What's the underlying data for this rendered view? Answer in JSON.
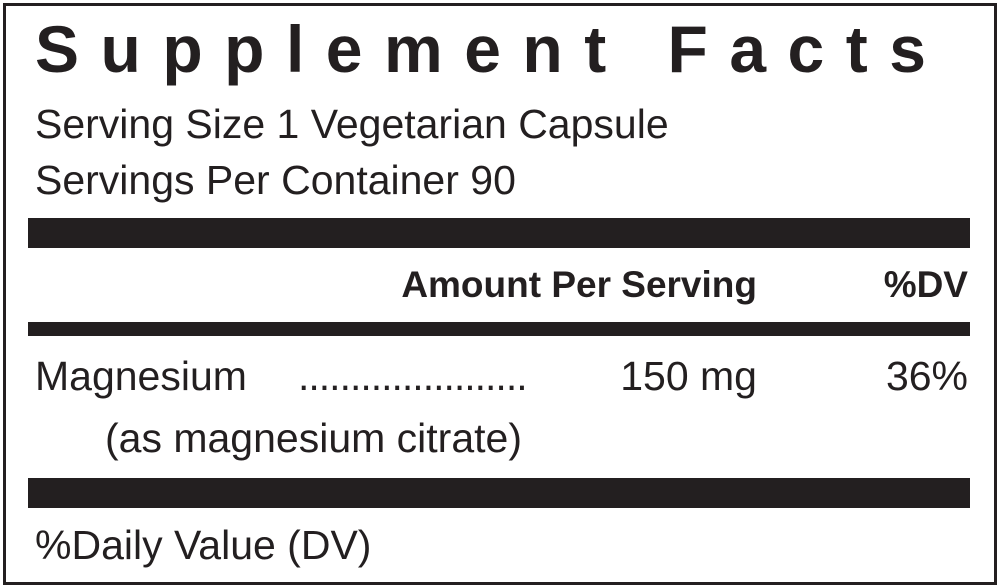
{
  "title": "Supplement Facts",
  "serving_size": "Serving Size 1 Vegetarian Capsule",
  "servings_per_container": "Servings Per Container 90",
  "header": {
    "amount": "Amount Per Serving",
    "dv": "%DV"
  },
  "nutrients": [
    {
      "name": "Magnesium",
      "dots": "......................",
      "amount": "150 mg",
      "dv": "36%",
      "source": "(as magnesium citrate)"
    }
  ],
  "footnote": "%Daily Value (DV)",
  "colors": {
    "ink": "#231f20",
    "background": "#ffffff"
  }
}
